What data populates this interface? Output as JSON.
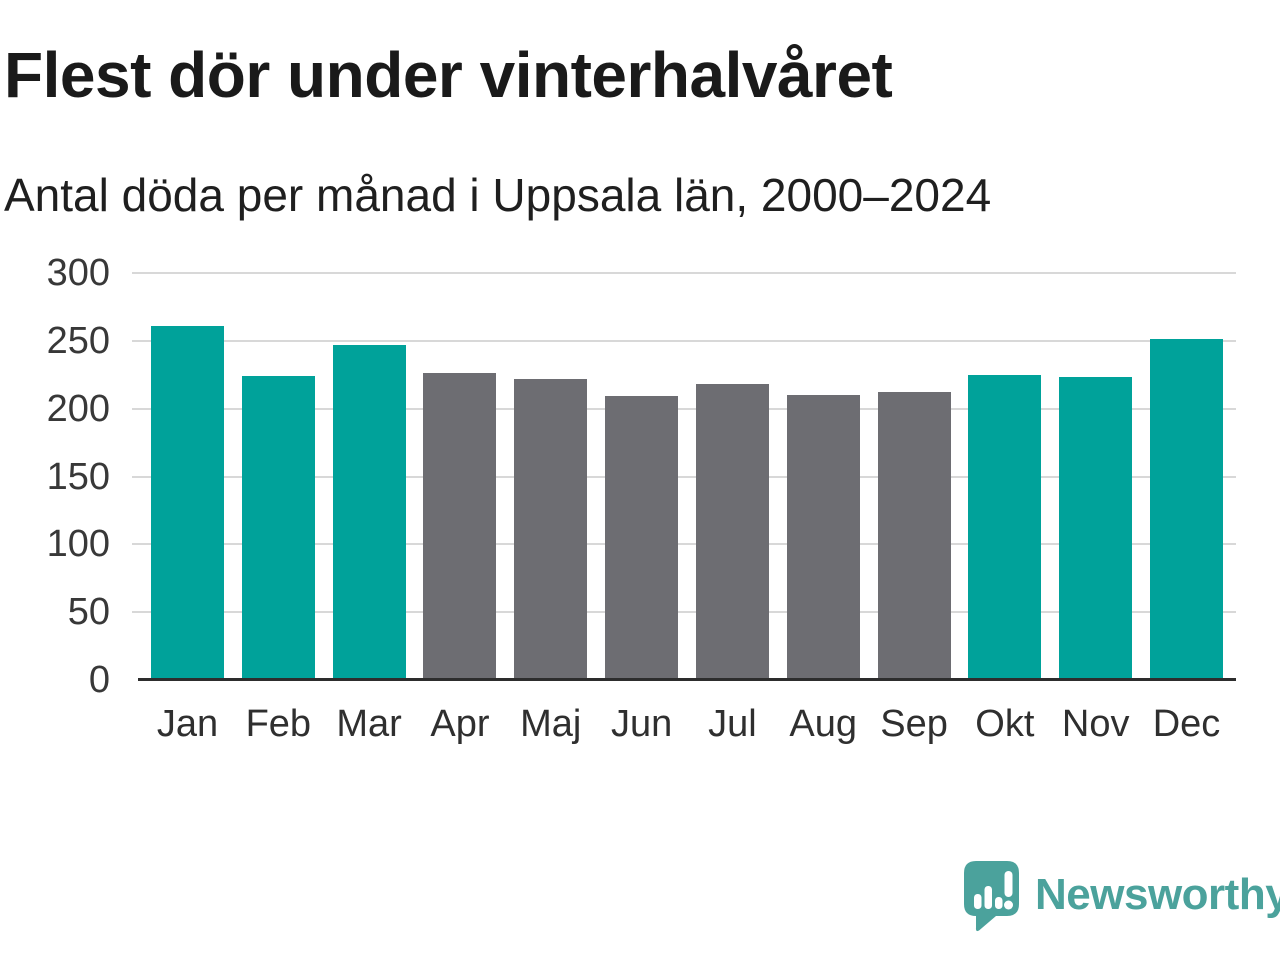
{
  "header": {
    "title": "Flest dör under vinterhalvåret",
    "subtitle": "Antal döda per månad i Uppsala län, 2000–2024"
  },
  "chart_data": {
    "type": "bar",
    "categories": [
      "Jan",
      "Feb",
      "Mar",
      "Apr",
      "Maj",
      "Jun",
      "Jul",
      "Aug",
      "Sep",
      "Okt",
      "Nov",
      "Dec"
    ],
    "values": [
      261,
      224,
      247,
      226,
      222,
      209,
      218,
      210,
      212,
      225,
      223,
      251
    ],
    "bar_roles": [
      "highlight",
      "highlight",
      "highlight",
      "muted",
      "muted",
      "muted",
      "muted",
      "muted",
      "muted",
      "highlight",
      "highlight",
      "highlight"
    ],
    "palette": {
      "highlight": "#00a29a",
      "muted": "#6d6d72"
    },
    "xlabel": "",
    "ylabel": "",
    "ylim": [
      0,
      300
    ],
    "yticks": [
      0,
      50,
      100,
      150,
      200,
      250,
      300
    ],
    "grid": true,
    "gridline_color": "#d8d8d8",
    "axis_line_color": "#2d2d2d",
    "legend": "none"
  },
  "branding": {
    "logo_text": "Newsworthy",
    "logo_color": "#4ba29c",
    "logo_icon": "bar-chart-speech-bubble-icon"
  }
}
